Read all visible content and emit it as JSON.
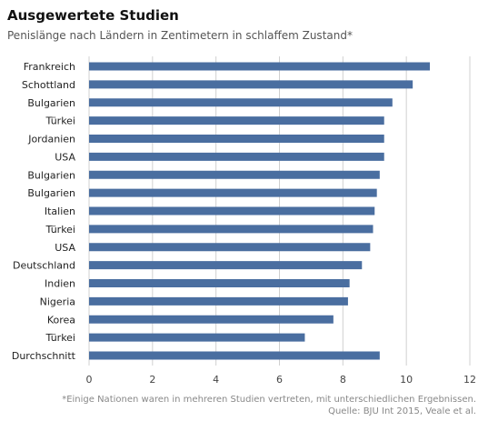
{
  "title": "Ausgewertete Studien",
  "subtitle": "Penislänge nach Ländern in Zentimetern in schlaffem Zustand*",
  "chart_data": {
    "type": "bar",
    "orientation": "horizontal",
    "categories": [
      "Frankreich",
      "Schottland",
      "Bulgarien",
      "Türkei",
      "Jordanien",
      "USA",
      "Bulgarien",
      "Bulgarien",
      "Italien",
      "Türkei",
      "USA",
      "Deutschland",
      "Indien",
      "Nigeria",
      "Korea",
      "Türkei",
      "Durchschnitt"
    ],
    "values": [
      10.74,
      10.2,
      9.56,
      9.3,
      9.3,
      9.3,
      9.16,
      9.07,
      9.0,
      8.95,
      8.86,
      8.6,
      8.21,
      8.16,
      7.7,
      6.8,
      9.16
    ],
    "xlim": [
      0,
      12
    ],
    "xticks": [
      0,
      2,
      4,
      6,
      8,
      10,
      12
    ],
    "grid": "vertical",
    "bar_color": "#4A6EA0",
    "grid_color": "#D0D0D0"
  },
  "footnote": {
    "line1": "*Einige Nationen waren in mehreren Studien vertreten, mit unterschiedlichen Ergebnissen.",
    "line2": "Quelle: BJU Int 2015, Veale et al."
  }
}
